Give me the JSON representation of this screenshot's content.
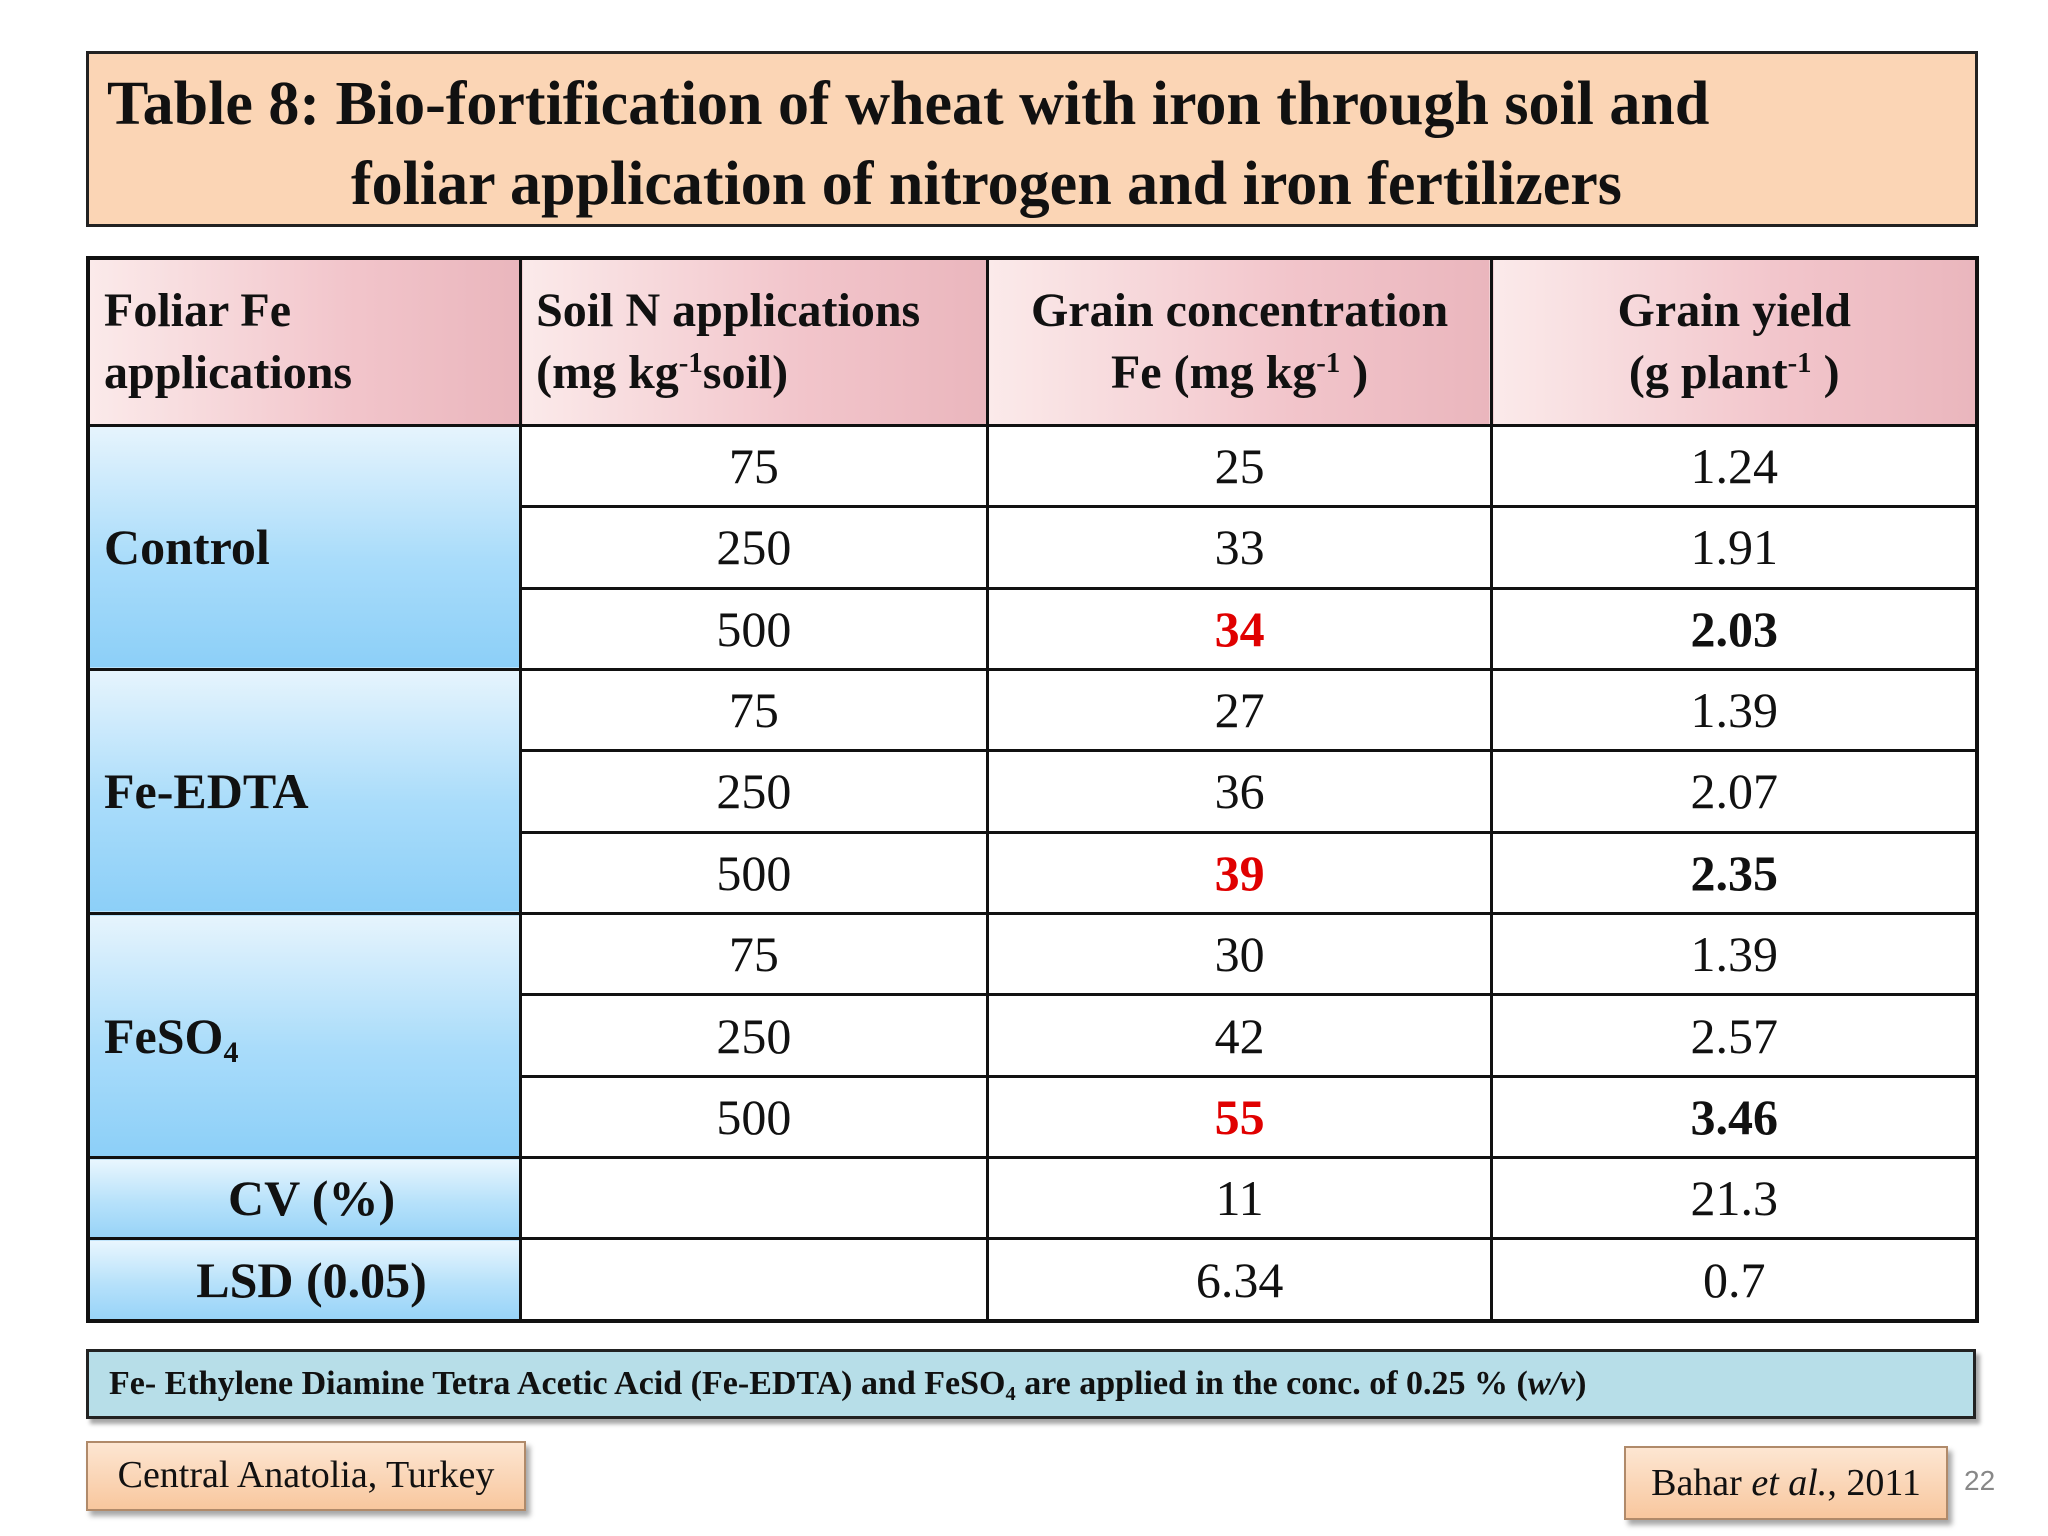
{
  "title": {
    "line1": "Table 8: Bio-fortification of wheat with iron through soil and",
    "line2": "foliar application of nitrogen and iron fertilizers"
  },
  "table": {
    "headers": {
      "col1_l1": "Foliar Fe",
      "col1_l2": "applications",
      "col2_l1": "Soil N applications",
      "col2_l2_a": "(mg kg",
      "col2_l2_sup": "-1",
      "col2_l2_b": "soil)",
      "col3_l1": "Grain concentration",
      "col3_l2_a": "Fe (mg kg",
      "col3_l2_sup": "-1",
      "col3_l2_b": " )",
      "col4_l1": "Grain yield",
      "col4_l2_a": "(g plant",
      "col4_l2_sup": "-1",
      "col4_l2_b": " )"
    },
    "groups": [
      {
        "name": "Control",
        "rows": [
          {
            "soil_n": "75",
            "fe": "25",
            "yield": "1.24"
          },
          {
            "soil_n": "250",
            "fe": "33",
            "yield": "1.91"
          },
          {
            "soil_n": "500",
            "fe": "34",
            "yield": "2.03"
          }
        ]
      },
      {
        "name": "Fe-EDTA",
        "rows": [
          {
            "soil_n": "75",
            "fe": "27",
            "yield": "1.39"
          },
          {
            "soil_n": "250",
            "fe": "36",
            "yield": "2.07"
          },
          {
            "soil_n": "500",
            "fe": "39",
            "yield": "2.35"
          }
        ]
      },
      {
        "name": "FeSO",
        "name_sub": "4",
        "rows": [
          {
            "soil_n": "75",
            "fe": "30",
            "yield": "1.39"
          },
          {
            "soil_n": "250",
            "fe": "42",
            "yield": "2.57"
          },
          {
            "soil_n": "500",
            "fe": "55",
            "yield": "3.46"
          }
        ]
      }
    ],
    "stats": [
      {
        "label": "CV (%)",
        "fe": "11",
        "yield": "21.3"
      },
      {
        "label": "LSD (0.05)",
        "fe": "6.34",
        "yield": "0.7"
      }
    ],
    "highlight_color": "#e00000"
  },
  "note": {
    "part1": "Fe- Ethylene Diamine Tetra Acetic Acid (Fe-EDTA) and FeSO",
    "sub": "4",
    "part2": " are applied in the conc. of 0.25 % (",
    "italic": "w/v",
    "part3": ")"
  },
  "location": "Central Anatolia, Turkey",
  "reference": {
    "author": "Bahar ",
    "etal": "et al.",
    "year": ", 2011"
  },
  "slide_number": "22"
}
